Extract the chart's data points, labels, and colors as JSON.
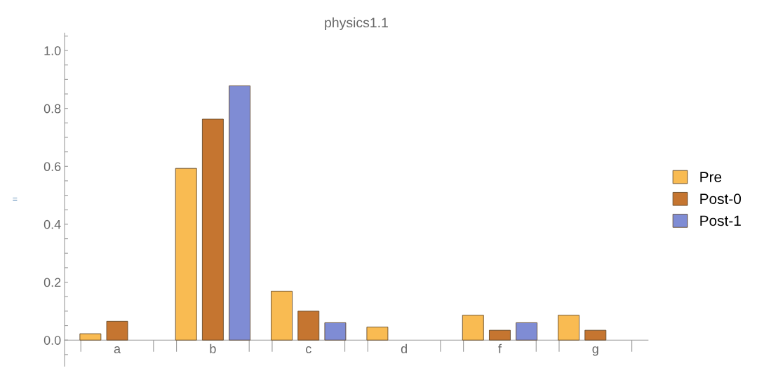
{
  "chart_data": {
    "type": "bar",
    "title": "physics1.1",
    "ylabel": "=",
    "categories": [
      "a",
      "b",
      "c",
      "d",
      "f",
      "g"
    ],
    "series": [
      {
        "name": "Pre",
        "color": "#f9bb52",
        "values": [
          0.022,
          0.593,
          0.169,
          0.045,
          0.086,
          0.086
        ]
      },
      {
        "name": "Post-0",
        "color": "#c57530",
        "values": [
          0.065,
          0.763,
          0.1,
          null,
          0.034,
          0.034
        ]
      },
      {
        "name": "Post-1",
        "color": "#7f8cd4",
        "values": [
          null,
          0.878,
          0.06,
          null,
          0.06,
          null
        ]
      }
    ],
    "ylim": [
      -0.09,
      1.06
    ],
    "yticks": [
      {
        "value": -0.05,
        "label": null
      },
      {
        "value": 0,
        "label": "0.0"
      },
      {
        "value": 0.05,
        "label": null
      },
      {
        "value": 0.1,
        "label": null
      },
      {
        "value": 0.15,
        "label": null
      },
      0.2,
      {
        "value": 0.25,
        "label": null
      },
      {
        "value": 0.3,
        "label": null
      },
      {
        "value": 0.35,
        "label": null
      },
      0.4,
      {
        "value": 0.45,
        "label": null
      },
      {
        "value": 0.5,
        "label": null
      },
      {
        "value": 0.55,
        "label": null
      },
      0.6,
      {
        "value": 0.65,
        "label": null
      },
      {
        "value": 0.7,
        "label": null
      },
      {
        "value": 0.75,
        "label": null
      },
      0.8,
      {
        "value": 0.85,
        "label": null
      },
      {
        "value": 0.9,
        "label": null
      },
      {
        "value": 0.95,
        "label": null
      },
      {
        "value": 1,
        "label": "1.0"
      },
      {
        "value": 1.05,
        "label": null
      }
    ],
    "grid": false,
    "legend": "right"
  }
}
